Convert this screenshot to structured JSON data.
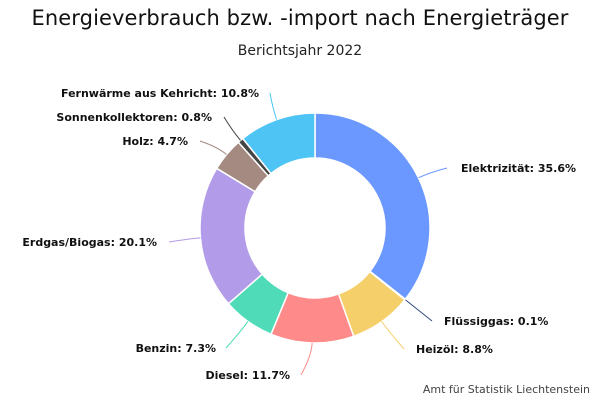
{
  "chart_data": {
    "type": "pie",
    "title": "Energieverbrauch bzw. -import nach Energieträger",
    "subtitle": "Berichtsjahr 2022",
    "credit": "Amt für Statistik Liechtenstein",
    "donut": true,
    "slices": [
      {
        "label": "Elektrizität",
        "value": 35.6,
        "display": "Elektrizität: 35.6%",
        "color": "#6a98ff"
      },
      {
        "label": "Flüssiggas",
        "value": 0.1,
        "display": "Flüssiggas: 0.1%",
        "color": "#2e4b7a"
      },
      {
        "label": "Heizöl",
        "value": 8.8,
        "display": "Heizöl: 8.8%",
        "color": "#f5d06a"
      },
      {
        "label": "Diesel",
        "value": 11.7,
        "display": "Diesel: 11.7%",
        "color": "#ff8a8a"
      },
      {
        "label": "Benzin",
        "value": 7.3,
        "display": "Benzin: 7.3%",
        "color": "#4fdbb8"
      },
      {
        "label": "Erdgas/Biogas",
        "value": 20.1,
        "display": "Erdgas/Biogas: 20.1%",
        "color": "#b29be8"
      },
      {
        "label": "Holz",
        "value": 4.7,
        "display": "Holz: 4.7%",
        "color": "#a48a80"
      },
      {
        "label": "Sonnenkollektoren",
        "value": 0.8,
        "display": "Sonnenkollektoren: 0.8%",
        "color": "#444444"
      },
      {
        "label": "Fernwärme aus Kehricht",
        "value": 10.8,
        "display": "Fernwärme aus Kehricht: 10.8%",
        "color": "#4ec4f5"
      }
    ]
  }
}
